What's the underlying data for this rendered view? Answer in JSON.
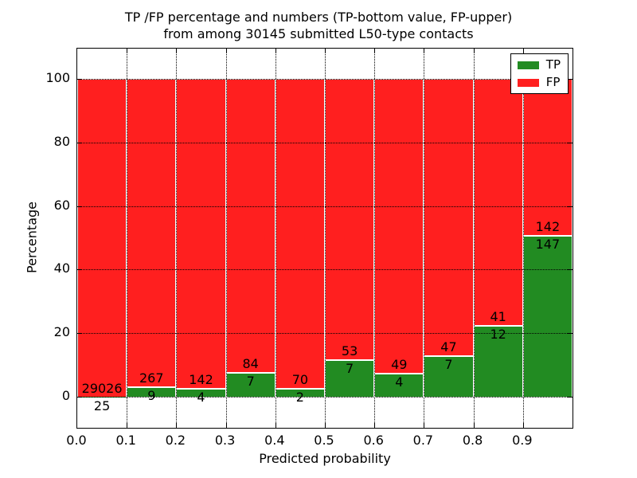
{
  "figure": {
    "title_line1": "TP /FP percentage and numbers (TP-bottom value, FP-upper)",
    "title_line2": "from among 30145 submitted L50-type contacts"
  },
  "chart_data": {
    "type": "bar",
    "stacked": true,
    "stack_unit": "percent of bin total (TP% + FP% = 100)",
    "title": "TP /FP percentage and numbers (TP-bottom value, FP-upper) from among 30145 submitted L50-type contacts",
    "xlabel": "Predicted probability",
    "ylabel": "Percentage",
    "total_contacts": 30145,
    "categories": [
      "0.0-0.1",
      "0.1-0.2",
      "0.2-0.3",
      "0.3-0.4",
      "0.4-0.5",
      "0.5-0.6",
      "0.6-0.7",
      "0.7-0.8",
      "0.8-0.9",
      "0.9-1.0"
    ],
    "series": [
      {
        "name": "TP",
        "color": "#228b22",
        "values": [
          25,
          9,
          4,
          7,
          2,
          7,
          4,
          7,
          12,
          147
        ]
      },
      {
        "name": "FP",
        "color": "#ff1f1f",
        "values": [
          29026,
          267,
          142,
          84,
          70,
          53,
          49,
          47,
          41,
          142
        ]
      }
    ],
    "tp_percent_of_bin": [
      0.09,
      3.26,
      2.74,
      7.69,
      2.78,
      11.67,
      7.55,
      12.96,
      22.64,
      50.87
    ],
    "x_tick_labels": [
      "0.0",
      "0.1",
      "0.2",
      "0.3",
      "0.4",
      "0.5",
      "0.6",
      "0.7",
      "0.8",
      "0.9"
    ],
    "y_ticks": [
      0,
      20,
      40,
      60,
      80,
      100
    ],
    "xlim": [
      0.0,
      1.0
    ],
    "ylim": [
      -10,
      110
    ],
    "grid": "dotted black, both axes",
    "legend_position": "upper right",
    "bar_edge_color": "#ffffff"
  },
  "legend": {
    "items": [
      {
        "label": "TP",
        "color": "#228b22"
      },
      {
        "label": "FP",
        "color": "#ff1f1f"
      }
    ]
  }
}
